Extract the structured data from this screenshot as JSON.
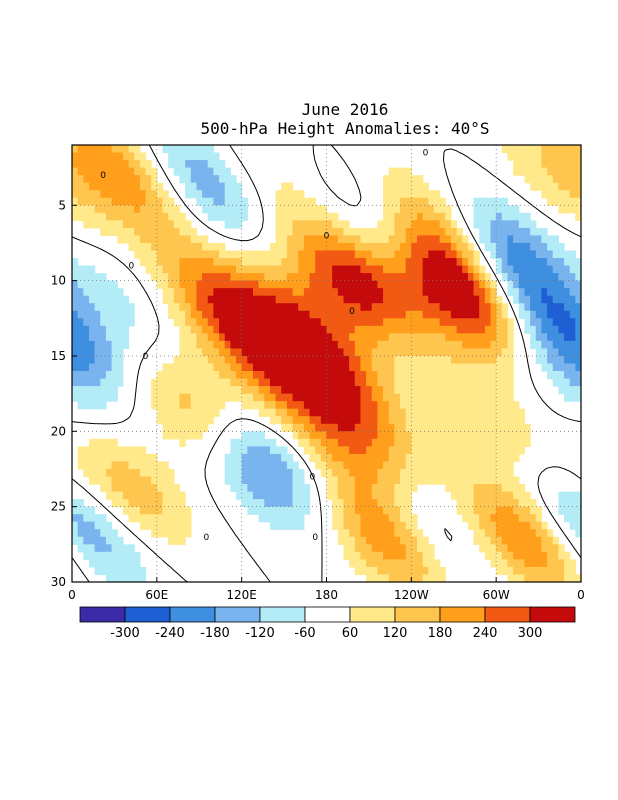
{
  "chart_data": {
    "type": "heatmap",
    "title": "June 2016",
    "subtitle": "500-hPa Height Anomalies: 40°S",
    "x_ticks": [
      "0",
      "60E",
      "120E",
      "180",
      "120W",
      "60W",
      "0"
    ],
    "x_values": [
      0,
      60,
      120,
      180,
      240,
      300,
      360
    ],
    "y_ticks": [
      "5",
      "10",
      "15",
      "20",
      "25",
      "30"
    ],
    "y_values": [
      5,
      10,
      15,
      20,
      25,
      30
    ],
    "xlim": [
      0,
      360
    ],
    "ylim": [
      1,
      30
    ],
    "grid": true,
    "color_levels": [
      -300,
      -240,
      -180,
      -120,
      -60,
      60,
      120,
      180,
      240,
      300
    ],
    "colorbar_labels": [
      "-300",
      "-240",
      "-180",
      "-120",
      "-60",
      "60",
      "120",
      "180",
      "240",
      "300"
    ],
    "colors": [
      "#3b2ba8",
      "#1f5fd4",
      "#3f8fe0",
      "#7ab4ee",
      "#b3ecf7",
      "#ffffff",
      "#ffe98a",
      "#ffc64f",
      "#ff9f1c",
      "#f25a14",
      "#c40a0a"
    ],
    "contour_label": "0",
    "anomaly_features": [
      {
        "lon": 30,
        "day": 2,
        "value": 170
      },
      {
        "lon": 50,
        "day": 5,
        "value": 80
      },
      {
        "lon": 110,
        "day": 12,
        "value": 260
      },
      {
        "lon": 160,
        "day": 13,
        "value": 200
      },
      {
        "lon": 150,
        "day": 17,
        "value": 150
      },
      {
        "lon": 200,
        "day": 10,
        "value": 330
      },
      {
        "lon": 190,
        "day": 17,
        "value": 200
      },
      {
        "lon": 210,
        "day": 22,
        "value": 170
      },
      {
        "lon": 250,
        "day": 6,
        "value": 160
      },
      {
        "lon": 258,
        "day": 9,
        "value": 290
      },
      {
        "lon": 285,
        "day": 12,
        "value": 220
      },
      {
        "lon": 90,
        "day": 19,
        "value": 220
      },
      {
        "lon": 40,
        "day": 24,
        "value": 170
      },
      {
        "lon": 225,
        "day": 27,
        "value": 280
      },
      {
        "lon": 320,
        "day": 27,
        "value": 260
      },
      {
        "lon": 290,
        "day": 19,
        "value": 140
      },
      {
        "lon": 340,
        "day": 3,
        "value": 110
      },
      {
        "lon": 5,
        "day": 11,
        "value": 110
      },
      {
        "lon": 130,
        "day": 3,
        "value": 80
      },
      {
        "lon": 100,
        "day": 4,
        "value": -150
      },
      {
        "lon": 228,
        "day": 7,
        "value": -210
      },
      {
        "lon": 130,
        "day": 22,
        "value": -270
      },
      {
        "lon": 310,
        "day": 8,
        "value": -210
      },
      {
        "lon": 330,
        "day": 12,
        "value": -120
      },
      {
        "lon": 25,
        "day": 11,
        "value": -130
      },
      {
        "lon": 5,
        "day": 14,
        "value": -150
      },
      {
        "lon": 245,
        "day": 26,
        "value": -180
      },
      {
        "lon": 20,
        "day": 27,
        "value": -100
      },
      {
        "lon": 355,
        "day": 26,
        "value": -110
      },
      {
        "lon": 80,
        "day": 2,
        "value": -60
      },
      {
        "lon": 270,
        "day": 18,
        "value": -40
      },
      {
        "lon": 130,
        "day": 15,
        "value": 10
      },
      {
        "lon": 340,
        "day": 16,
        "value": -80
      }
    ]
  }
}
